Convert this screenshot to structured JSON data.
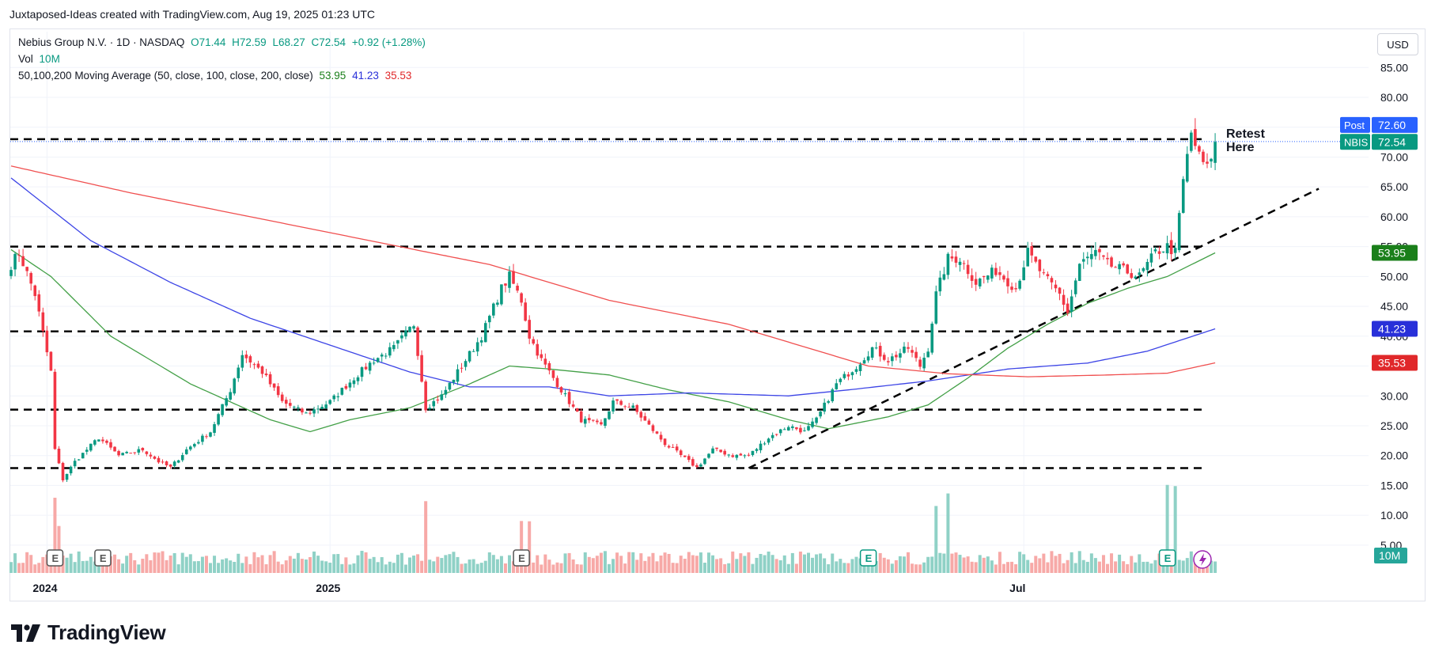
{
  "header": {
    "attribution": "Juxtaposed-Ideas created with TradingView.com, Aug 19, 2025 01:23 UTC"
  },
  "legend": {
    "symbol": "Nebius Group N.V. · 1D · NASDAQ",
    "open": "O71.44",
    "high": "H72.59",
    "low": "L68.27",
    "close": "C72.54",
    "change": "+0.92 (+1.28%)",
    "vol_label": "Vol",
    "vol_value": "10M",
    "ma_label": "50,100,200 Moving Average (50, close, 100, close, 200, close)",
    "ma50": "53.95",
    "ma100": "41.23",
    "ma200": "35.53"
  },
  "currency": "USD",
  "logo_text": "TradingView",
  "chart_data": {
    "type": "candlestick",
    "symbol": "NBIS",
    "interval": "1D",
    "y_ticks": [
      "85.00",
      "80.00",
      "75.00",
      "70.00",
      "65.00",
      "60.00",
      "55.00",
      "50.00",
      "45.00",
      "40.00",
      "35.00",
      "30.00",
      "25.00",
      "20.00",
      "15.00",
      "10.00",
      "5.00"
    ],
    "x_ticks": [
      {
        "label": "2024",
        "i": 9
      },
      {
        "label": "2025",
        "i": 80
      },
      {
        "label": "Jul",
        "i": 254
      }
    ],
    "price_labels": [
      {
        "name": "Post",
        "value": "72.60",
        "price": 72.6,
        "color": "#2962ff"
      },
      {
        "name": "NBIS",
        "value": "72.54",
        "price": 72.54,
        "color": "#089981"
      },
      {
        "name": "",
        "value": "53.95",
        "price": 53.95,
        "color": "#1a7f1a"
      },
      {
        "name": "",
        "value": "41.23",
        "price": 41.23,
        "color": "#2830d9"
      },
      {
        "name": "",
        "value": "35.53",
        "price": 35.53,
        "color": "#e0282a"
      }
    ],
    "volume_label": "10M",
    "ylim": [
      0,
      87
    ],
    "horizontal_levels": [
      73.0,
      55.0,
      40.8,
      27.7,
      17.9
    ],
    "trendline": {
      "from": {
        "i": 185,
        "price": 17.9
      },
      "to": {
        "i": 328,
        "price": 64.7
      }
    },
    "annotations": [
      "Retest",
      "Here"
    ],
    "earnings_markers": [
      {
        "i": 11,
        "label": "E",
        "style": "past"
      },
      {
        "i": 23,
        "label": "E",
        "style": "past"
      },
      {
        "i": 128,
        "label": "E",
        "style": "past"
      },
      {
        "i": 215,
        "label": "E",
        "style": "green"
      },
      {
        "i": 290,
        "label": "E",
        "style": "green"
      }
    ],
    "anchors": [
      [
        0,
        52
      ],
      [
        2,
        54
      ],
      [
        6,
        47
      ],
      [
        10,
        34
      ],
      [
        11,
        21
      ],
      [
        13,
        16
      ],
      [
        16,
        19
      ],
      [
        22,
        23
      ],
      [
        27,
        20
      ],
      [
        33,
        21
      ],
      [
        37,
        19
      ],
      [
        40,
        18
      ],
      [
        44,
        21
      ],
      [
        50,
        24
      ],
      [
        55,
        31
      ],
      [
        58,
        37
      ],
      [
        63,
        34
      ],
      [
        68,
        29
      ],
      [
        74,
        27
      ],
      [
        80,
        29
      ],
      [
        86,
        33
      ],
      [
        91,
        36
      ],
      [
        96,
        38
      ],
      [
        101,
        42
      ],
      [
        104,
        28
      ],
      [
        108,
        30
      ],
      [
        114,
        36
      ],
      [
        118,
        40
      ],
      [
        123,
        48
      ],
      [
        125,
        50
      ],
      [
        128,
        46
      ],
      [
        130,
        40
      ],
      [
        133,
        36
      ],
      [
        136,
        33
      ],
      [
        140,
        29
      ],
      [
        143,
        26
      ],
      [
        148,
        25
      ],
      [
        151,
        29
      ],
      [
        156,
        28
      ],
      [
        160,
        25
      ],
      [
        164,
        22
      ],
      [
        170,
        19
      ],
      [
        172,
        18
      ],
      [
        176,
        21
      ],
      [
        181,
        20
      ],
      [
        185,
        20
      ],
      [
        190,
        23
      ],
      [
        195,
        25
      ],
      [
        199,
        24
      ],
      [
        202,
        26
      ],
      [
        207,
        32
      ],
      [
        212,
        35
      ],
      [
        216,
        38
      ],
      [
        220,
        36
      ],
      [
        225,
        38
      ],
      [
        228,
        35
      ],
      [
        230,
        38
      ],
      [
        232,
        47
      ],
      [
        235,
        53
      ],
      [
        238,
        53
      ],
      [
        242,
        49
      ],
      [
        247,
        51
      ],
      [
        252,
        48
      ],
      [
        255,
        54
      ],
      [
        259,
        50
      ],
      [
        263,
        47
      ],
      [
        265,
        44
      ],
      [
        268,
        52
      ],
      [
        272,
        54
      ],
      [
        275,
        52
      ],
      [
        279,
        51
      ],
      [
        283,
        50
      ],
      [
        287,
        54
      ],
      [
        290,
        55
      ],
      [
        292,
        54
      ],
      [
        294,
        66
      ],
      [
        296,
        74
      ],
      [
        298,
        70
      ],
      [
        300,
        68
      ],
      [
        302,
        72.54
      ]
    ],
    "series": [
      {
        "name": "50",
        "color": "#43a047",
        "anchors": [
          [
            0,
            54.5
          ],
          [
            10,
            50
          ],
          [
            25,
            40
          ],
          [
            45,
            32
          ],
          [
            65,
            26
          ],
          [
            75,
            24
          ],
          [
            85,
            26
          ],
          [
            100,
            28
          ],
          [
            115,
            32
          ],
          [
            125,
            35
          ],
          [
            135,
            34.5
          ],
          [
            150,
            33.5
          ],
          [
            165,
            31
          ],
          [
            180,
            29
          ],
          [
            195,
            26
          ],
          [
            205,
            24.5
          ],
          [
            220,
            26.5
          ],
          [
            230,
            28.5
          ],
          [
            240,
            33
          ],
          [
            250,
            38
          ],
          [
            260,
            42
          ],
          [
            270,
            45.5
          ],
          [
            280,
            48
          ],
          [
            290,
            50
          ],
          [
            302,
            53.95
          ]
        ]
      },
      {
        "name": "100",
        "color": "#3d45e6",
        "anchors": [
          [
            0,
            66.5
          ],
          [
            20,
            56
          ],
          [
            40,
            49
          ],
          [
            60,
            43
          ],
          [
            80,
            38.5
          ],
          [
            100,
            34
          ],
          [
            115,
            31.5
          ],
          [
            135,
            31.5
          ],
          [
            150,
            30
          ],
          [
            170,
            30.5
          ],
          [
            195,
            30
          ],
          [
            210,
            31
          ],
          [
            230,
            32.5
          ],
          [
            250,
            34.5
          ],
          [
            270,
            35.5
          ],
          [
            285,
            37.5
          ],
          [
            302,
            41.23
          ]
        ]
      },
      {
        "name": "200",
        "color": "#f04f4f",
        "anchors": [
          [
            0,
            68.5
          ],
          [
            30,
            64
          ],
          [
            60,
            60
          ],
          [
            90,
            56
          ],
          [
            120,
            52
          ],
          [
            150,
            46
          ],
          [
            180,
            42
          ],
          [
            200,
            38
          ],
          [
            215,
            35
          ],
          [
            235,
            33.7
          ],
          [
            255,
            33.2
          ],
          [
            275,
            33.5
          ],
          [
            290,
            33.8
          ],
          [
            302,
            35.53
          ]
        ]
      }
    ]
  }
}
